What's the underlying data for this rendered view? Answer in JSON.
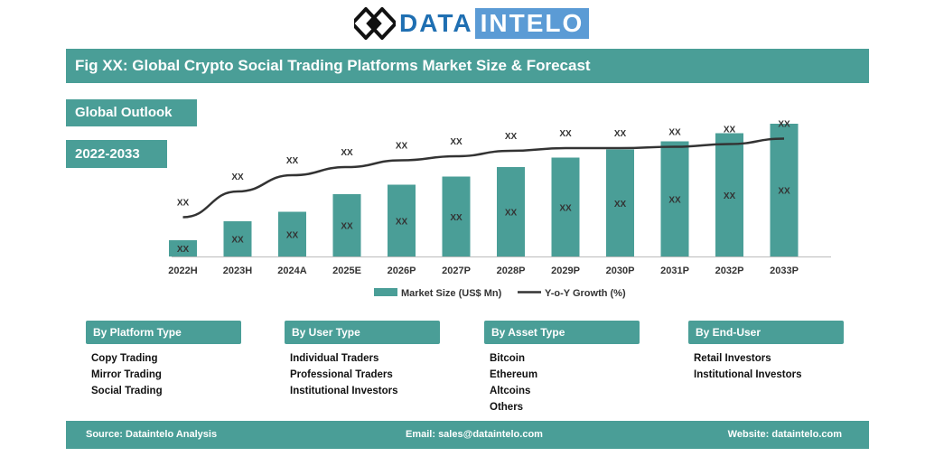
{
  "logo": {
    "part1": "DATA",
    "part2": "INTELO"
  },
  "title": "Fig XX: Global Crypto Social Trading Platforms Market Size & Forecast",
  "tags": {
    "outlook": "Global Outlook",
    "years": "2022-2033"
  },
  "colors": {
    "teal": "#4a9e97",
    "line": "#333333",
    "brand_blue": "#1f6fb2"
  },
  "chart_data": {
    "type": "bar",
    "categories": [
      "2022H",
      "2023H",
      "2024A",
      "2025E",
      "2026P",
      "2027P",
      "2028P",
      "2029P",
      "2030P",
      "2031P",
      "2032P",
      "2033P"
    ],
    "series": [
      {
        "name": "Market Size (US$ Mn)",
        "kind": "bar",
        "values": [
          12,
          26,
          33,
          46,
          53,
          59,
          66,
          73,
          79,
          85,
          91,
          98
        ],
        "labels": [
          "XX",
          "XX",
          "XX",
          "XX",
          "XX",
          "XX",
          "XX",
          "XX",
          "XX",
          "XX",
          "XX",
          "XX"
        ]
      },
      {
        "name": "Y-o-Y Growth (%)",
        "kind": "line",
        "values": [
          29,
          48,
          60,
          66,
          71,
          74,
          78,
          80,
          80,
          81,
          83,
          87
        ],
        "labels": [
          "XX",
          "XX",
          "XX",
          "XX",
          "XX",
          "XX",
          "XX",
          "XX",
          "XX",
          "XX",
          "XX",
          "XX"
        ]
      }
    ],
    "ylim": [
      0,
      100
    ],
    "legend_position": "bottom",
    "grid": false
  },
  "segments": [
    {
      "title": "By Platform Type",
      "items": [
        "Copy Trading",
        "Mirror Trading",
        "Social Trading"
      ]
    },
    {
      "title": "By User Type",
      "items": [
        "Individual Traders",
        "Professional Traders",
        "Institutional Investors"
      ]
    },
    {
      "title": "By Asset Type",
      "items": [
        "Bitcoin",
        "Ethereum",
        "Altcoins",
        "Others"
      ]
    },
    {
      "title": "By End-User",
      "items": [
        "Retail Investors",
        "Institutional Investors"
      ]
    }
  ],
  "footer": {
    "source": "Source: Dataintelo  Analysis",
    "email": "Email: sales@dataintelo.com",
    "website": "Website: dataintelo.com"
  }
}
